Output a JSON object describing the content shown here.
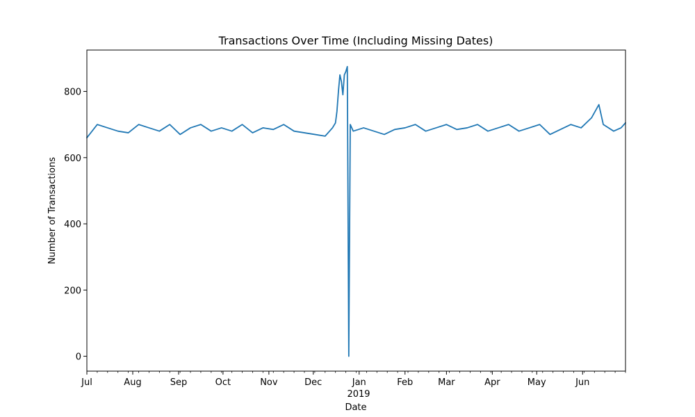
{
  "chart_data": {
    "type": "line",
    "title": "Transactions Over Time (Including Missing Dates)",
    "xlabel": "Date",
    "ylabel": "Number of Transactions",
    "x_range": [
      "2018-07-01",
      "2019-06-30"
    ],
    "ylim": [
      -45,
      925
    ],
    "y_ticks": [
      0,
      200,
      400,
      600,
      800
    ],
    "x_major_ticks": [
      {
        "date": "2018-07-01",
        "label": "Jul"
      },
      {
        "date": "2018-08-01",
        "label": "Aug"
      },
      {
        "date": "2018-09-01",
        "label": "Sep"
      },
      {
        "date": "2018-10-01",
        "label": "Oct"
      },
      {
        "date": "2018-11-01",
        "label": "Nov"
      },
      {
        "date": "2018-12-01",
        "label": "Dec"
      },
      {
        "date": "2019-01-01",
        "label": "Jan"
      },
      {
        "date": "2019-02-01",
        "label": "Feb"
      },
      {
        "date": "2019-03-01",
        "label": "Mar"
      },
      {
        "date": "2019-04-01",
        "label": "Apr"
      },
      {
        "date": "2019-05-01",
        "label": "May"
      },
      {
        "date": "2019-06-01",
        "label": "Jun"
      }
    ],
    "year_label": "2019",
    "grid": false,
    "line_color": "#1f77b4",
    "series": [
      {
        "x": [
          "2018-07-01",
          "2018-07-08",
          "2018-07-15",
          "2018-07-22",
          "2018-07-29",
          "2018-08-05",
          "2018-08-12",
          "2018-08-19",
          "2018-08-26",
          "2018-09-02",
          "2018-09-09",
          "2018-09-16",
          "2018-09-23",
          "2018-09-30",
          "2018-10-07",
          "2018-10-14",
          "2018-10-21",
          "2018-10-28",
          "2018-11-04",
          "2018-11-11",
          "2018-11-18",
          "2018-11-25",
          "2018-12-02",
          "2018-12-09",
          "2018-12-14",
          "2018-12-16",
          "2018-12-17",
          "2018-12-18",
          "2018-12-19",
          "2018-12-20",
          "2018-12-21",
          "2018-12-22",
          "2018-12-23",
          "2018-12-24",
          "2018-12-25",
          "2018-12-26",
          "2018-12-28",
          "2019-01-04",
          "2019-01-11",
          "2019-01-18",
          "2019-01-25",
          "2019-02-01",
          "2019-02-08",
          "2019-02-15",
          "2019-02-22",
          "2019-03-01",
          "2019-03-08",
          "2019-03-15",
          "2019-03-22",
          "2019-03-29",
          "2019-04-05",
          "2019-04-12",
          "2019-04-19",
          "2019-04-26",
          "2019-05-03",
          "2019-05-10",
          "2019-05-17",
          "2019-05-24",
          "2019-05-31",
          "2019-06-07",
          "2019-06-12",
          "2019-06-15",
          "2019-06-22",
          "2019-06-27",
          "2019-06-30"
        ],
        "y": [
          660,
          700,
          690,
          680,
          675,
          700,
          690,
          680,
          700,
          670,
          690,
          700,
          680,
          690,
          680,
          700,
          675,
          690,
          685,
          700,
          680,
          675,
          670,
          665,
          690,
          705,
          740,
          800,
          850,
          830,
          790,
          850,
          860,
          875,
          0,
          700,
          680,
          690,
          680,
          670,
          685,
          690,
          700,
          680,
          690,
          700,
          685,
          690,
          700,
          680,
          690,
          700,
          680,
          690,
          700,
          670,
          685,
          700,
          690,
          720,
          760,
          700,
          680,
          690,
          705
        ]
      }
    ]
  }
}
